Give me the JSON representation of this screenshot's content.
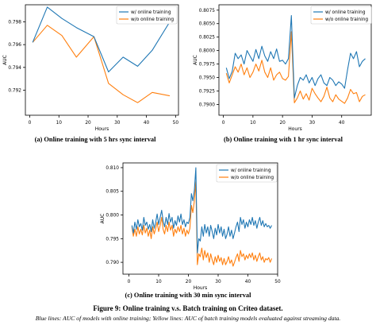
{
  "chart_data": [
    {
      "type": "line",
      "title": "",
      "xlabel": "Hours",
      "ylabel": "AUC",
      "xlim": [
        -1.5,
        51
      ],
      "ylim": [
        0.7898,
        0.7995
      ],
      "xticks": [
        0,
        10,
        20,
        30,
        40,
        50
      ],
      "yticks": [
        0.792,
        0.794,
        0.796,
        0.798
      ],
      "ytick_labels": [
        "0.792",
        "0.794",
        "0.796",
        "0.798"
      ],
      "legend_position": "top-right",
      "grid": false,
      "series": [
        {
          "name": "w/ online training",
          "color": "#1f77b4",
          "x": [
            1,
            6,
            11,
            16,
            22,
            27,
            32,
            37,
            42,
            48
          ],
          "y": [
            0.7962,
            0.7993,
            0.7983,
            0.7975,
            0.7967,
            0.7936,
            0.7949,
            0.7941,
            0.7955,
            0.798
          ]
        },
        {
          "name": "w/o online training",
          "color": "#ff7f0e",
          "x": [
            1,
            6,
            11,
            16,
            22,
            27,
            32,
            37,
            42,
            48
          ],
          "y": [
            0.7962,
            0.7977,
            0.7968,
            0.7949,
            0.7967,
            0.7926,
            0.7916,
            0.7909,
            0.7918,
            0.7915
          ]
        }
      ]
    },
    {
      "type": "line",
      "title": "",
      "xlabel": "Hours",
      "ylabel": "AUC",
      "xlim": [
        -1.5,
        50
      ],
      "ylim": [
        0.788,
        0.8085
      ],
      "xticks": [
        0,
        10,
        20,
        30,
        40
      ],
      "yticks": [
        0.79,
        0.7925,
        0.795,
        0.7975,
        0.8,
        0.8025,
        0.805,
        0.8075
      ],
      "ytick_labels": [
        "0.7900",
        "0.7925",
        "0.7950",
        "0.7975",
        "0.8000",
        "0.8025",
        "0.8050",
        "0.8075"
      ],
      "legend_position": "top-right",
      "grid": false,
      "series": [
        {
          "name": "w/ online training",
          "color": "#1f77b4",
          "x": [
            1,
            2,
            3,
            4,
            5,
            6,
            7,
            8,
            9,
            10,
            11,
            12,
            13,
            14,
            15,
            16,
            17,
            18,
            19,
            20,
            21,
            22,
            23,
            24,
            25,
            26,
            27,
            28,
            29,
            30,
            31,
            32,
            33,
            34,
            35,
            36,
            37,
            38,
            39,
            40,
            41,
            42,
            43,
            44,
            45,
            46,
            47,
            48
          ],
          "y": [
            0.7968,
            0.7948,
            0.7962,
            0.7995,
            0.7985,
            0.7992,
            0.7975,
            0.8,
            0.799,
            0.798,
            0.8002,
            0.7985,
            0.8008,
            0.799,
            0.798,
            0.7998,
            0.7985,
            0.8003,
            0.798,
            0.7982,
            0.7975,
            0.7985,
            0.8065,
            0.7912,
            0.7935,
            0.795,
            0.7945,
            0.7955,
            0.794,
            0.795,
            0.7935,
            0.7948,
            0.7955,
            0.794,
            0.7935,
            0.795,
            0.7945,
            0.7935,
            0.7942,
            0.7938,
            0.793,
            0.7965,
            0.7995,
            0.7985,
            0.7998,
            0.797,
            0.798,
            0.7985
          ]
        },
        {
          "name": "w/o online training",
          "color": "#ff7f0e",
          "x": [
            1,
            2,
            3,
            4,
            5,
            6,
            7,
            8,
            9,
            10,
            11,
            12,
            13,
            14,
            15,
            16,
            17,
            18,
            19,
            20,
            21,
            22,
            23,
            24,
            25,
            26,
            27,
            28,
            29,
            30,
            31,
            32,
            33,
            34,
            35,
            36,
            37,
            38,
            39,
            40,
            41,
            42,
            43,
            44,
            45,
            46,
            47,
            48
          ],
          "y": [
            0.7958,
            0.794,
            0.7955,
            0.797,
            0.796,
            0.7975,
            0.7955,
            0.7968,
            0.795,
            0.796,
            0.7975,
            0.7962,
            0.7982,
            0.796,
            0.795,
            0.7968,
            0.7945,
            0.7955,
            0.796,
            0.7948,
            0.7945,
            0.7952,
            0.8035,
            0.7903,
            0.7912,
            0.7925,
            0.791,
            0.792,
            0.7908,
            0.793,
            0.792,
            0.7912,
            0.7905,
            0.7915,
            0.7932,
            0.7912,
            0.7905,
            0.7918,
            0.791,
            0.7906,
            0.7902,
            0.7912,
            0.7928,
            0.792,
            0.7922,
            0.7905,
            0.7915,
            0.7918
          ]
        }
      ]
    },
    {
      "type": "line",
      "title": "",
      "xlabel": "Hours",
      "ylabel": "AUC",
      "xlim": [
        -2,
        50
      ],
      "ylim": [
        0.7875,
        0.811
      ],
      "xticks": [
        0,
        10,
        20,
        30,
        40,
        50
      ],
      "yticks": [
        0.79,
        0.795,
        0.8,
        0.805,
        0.81
      ],
      "ytick_labels": [
        "0.790",
        "0.795",
        "0.800",
        "0.805",
        "0.810"
      ],
      "legend_position": "top-right",
      "grid": false,
      "series": [
        {
          "name": "w/ online training",
          "color": "#1f77b4",
          "x": [
            1,
            1.5,
            2,
            2.5,
            3,
            3.5,
            4,
            4.5,
            5,
            5.5,
            6,
            6.5,
            7,
            7.5,
            8,
            8.5,
            9,
            9.5,
            10,
            10.5,
            11,
            11.5,
            12,
            12.5,
            13,
            13.5,
            14,
            14.5,
            15,
            15.5,
            16,
            16.5,
            17,
            17.5,
            18,
            18.5,
            19,
            19.5,
            20,
            20.5,
            21,
            21.5,
            22,
            22.5,
            23,
            23.5,
            24,
            24.5,
            25,
            25.5,
            26,
            26.5,
            27,
            27.5,
            28,
            28.5,
            29,
            29.5,
            30,
            30.5,
            31,
            31.5,
            32,
            32.5,
            33,
            33.5,
            34,
            34.5,
            35,
            35.5,
            36,
            36.5,
            37,
            37.5,
            38,
            38.5,
            39,
            39.5,
            40,
            40.5,
            41,
            41.5,
            42,
            42.5,
            43,
            43.5,
            44,
            44.5,
            45,
            45.5,
            46,
            46.5,
            47,
            47.5,
            48
          ],
          "y": [
            0.7978,
            0.7962,
            0.7985,
            0.797,
            0.799,
            0.7975,
            0.7982,
            0.7968,
            0.7995,
            0.7978,
            0.7985,
            0.797,
            0.798,
            0.7965,
            0.799,
            0.7972,
            0.7985,
            0.8002,
            0.798,
            0.7995,
            0.801,
            0.7988,
            0.7975,
            0.7995,
            0.798,
            0.8003,
            0.7985,
            0.7995,
            0.7972,
            0.7988,
            0.7978,
            0.7998,
            0.7985,
            0.8002,
            0.798,
            0.799,
            0.7975,
            0.7985,
            0.7982,
            0.7995,
            0.8045,
            0.803,
            0.8052,
            0.81,
            0.792,
            0.795,
            0.7945,
            0.7975,
            0.7955,
            0.798,
            0.7962,
            0.7975,
            0.7955,
            0.7978,
            0.7965,
            0.795,
            0.7972,
            0.7958,
            0.798,
            0.7962,
            0.7975,
            0.7955,
            0.797,
            0.795,
            0.796,
            0.7975,
            0.7955,
            0.7968,
            0.795,
            0.7962,
            0.7975,
            0.7985,
            0.7965,
            0.7995,
            0.798,
            0.799,
            0.7972,
            0.7985,
            0.7975,
            0.799,
            0.798,
            0.7995,
            0.7978,
            0.7988,
            0.7972,
            0.7985,
            0.7995,
            0.7978,
            0.7988,
            0.7975,
            0.7982,
            0.7975,
            0.7978,
            0.7972,
            0.7978
          ]
        },
        {
          "name": "w/o online training",
          "color": "#ff7f0e",
          "x": [
            1,
            1.5,
            2,
            2.5,
            3,
            3.5,
            4,
            4.5,
            5,
            5.5,
            6,
            6.5,
            7,
            7.5,
            8,
            8.5,
            9,
            9.5,
            10,
            10.5,
            11,
            11.5,
            12,
            12.5,
            13,
            13.5,
            14,
            14.5,
            15,
            15.5,
            16,
            16.5,
            17,
            17.5,
            18,
            18.5,
            19,
            19.5,
            20,
            20.5,
            21,
            21.5,
            22,
            22.5,
            23,
            23.5,
            24,
            24.5,
            25,
            25.5,
            26,
            26.5,
            27,
            27.5,
            28,
            28.5,
            29,
            29.5,
            30,
            30.5,
            31,
            31.5,
            32,
            32.5,
            33,
            33.5,
            34,
            34.5,
            35,
            35.5,
            36,
            36.5,
            37,
            37.5,
            38,
            38.5,
            39,
            39.5,
            40,
            40.5,
            41,
            41.5,
            42,
            42.5,
            43,
            43.5,
            44,
            44.5,
            45,
            45.5,
            46,
            46.5,
            47,
            47.5,
            48
          ],
          "y": [
            0.7975,
            0.7955,
            0.797,
            0.7955,
            0.7975,
            0.796,
            0.797,
            0.7958,
            0.7978,
            0.7962,
            0.7972,
            0.7955,
            0.7968,
            0.795,
            0.7975,
            0.796,
            0.7972,
            0.7985,
            0.7965,
            0.7978,
            0.7995,
            0.797,
            0.796,
            0.7978,
            0.7965,
            0.7985,
            0.7968,
            0.7978,
            0.7955,
            0.797,
            0.7962,
            0.7975,
            0.7965,
            0.7978,
            0.796,
            0.7972,
            0.7955,
            0.7968,
            0.796,
            0.7972,
            0.802,
            0.8005,
            0.803,
            0.807,
            0.7895,
            0.7918,
            0.7912,
            0.793,
            0.7905,
            0.7925,
            0.791,
            0.792,
            0.79,
            0.7918,
            0.7905,
            0.7895,
            0.7912,
            0.79,
            0.7915,
            0.7902,
            0.791,
            0.7895,
            0.7908,
            0.7895,
            0.7902,
            0.7912,
            0.7898,
            0.7905,
            0.7892,
            0.79,
            0.791,
            0.7918,
            0.7902,
            0.7925,
            0.7912,
            0.7918,
            0.7905,
            0.7915,
            0.7908,
            0.7918,
            0.791,
            0.792,
            0.7905,
            0.7915,
            0.7902,
            0.7912,
            0.792,
            0.7905,
            0.7912,
            0.79,
            0.7908,
            0.7905,
            0.791,
            0.79,
            0.7908
          ]
        }
      ]
    }
  ],
  "captions": {
    "sub_a": "(a) Online training with 5 hrs sync interval",
    "sub_b": "(b) Online training with 1 hr sync interval",
    "sub_c": "(c) Online training with 30 min sync interval",
    "figure": "Figure 9: Online training v.s. Batch training on Criteo dataset.",
    "note": "Blue lines: AUC of models with online training; Yellow lines: AUC of batch training models evaluated against streaming data."
  }
}
